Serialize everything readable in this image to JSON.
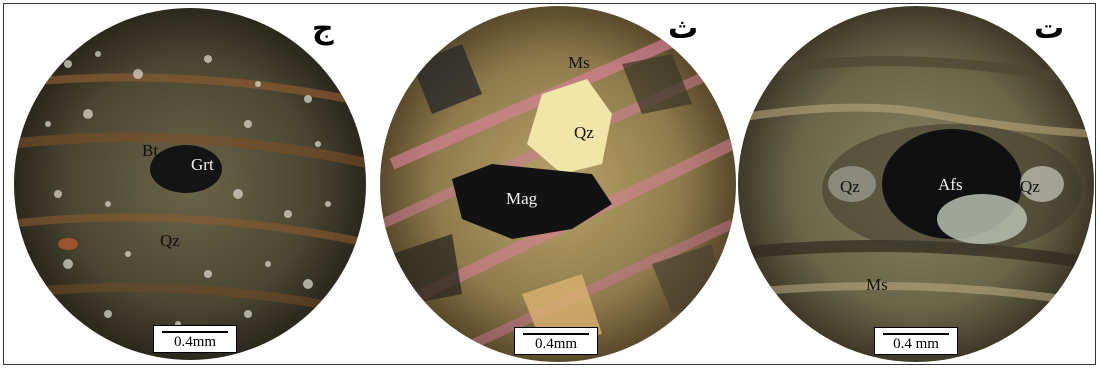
{
  "panels": [
    {
      "letter": "ج",
      "minerals": {
        "bt": "Bt",
        "grt": "Grt",
        "qz": "Qz"
      },
      "scale": "0.4mm"
    },
    {
      "letter": "ث",
      "minerals": {
        "ms": "Ms",
        "qz": "Qz",
        "mag": "Mag"
      },
      "scale": "0.4mm"
    },
    {
      "letter": "ت",
      "minerals": {
        "qz_left": "Qz",
        "afs": "Afs",
        "qz_right": "Qz",
        "ms": "Ms"
      },
      "scale": "0.4 mm"
    }
  ]
}
